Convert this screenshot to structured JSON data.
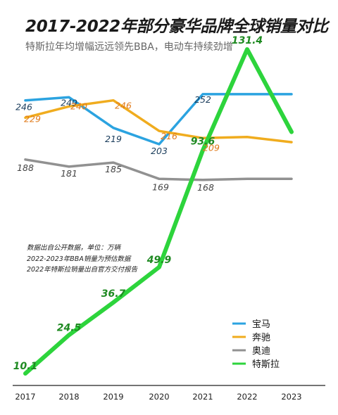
{
  "header": {
    "title": "2017-2022年部分豪华品牌全球销量对比",
    "subtitle": "特斯拉年均增幅远远领先BBA，电动车持续劲增"
  },
  "notes": [
    "数据出自公开数据，单位：万辆",
    "2022-2023年BBA销量为预估数据",
    "2022年特斯拉销量出自官方交付报告"
  ],
  "chart_data": {
    "type": "line",
    "title": "2017-2022年部分豪华品牌全球销量对比",
    "subtitle": "特斯拉年均增幅远远领先BBA，电动车持续劲增",
    "x": [
      "2017",
      "2018",
      "2019",
      "2020",
      "2021",
      "2022",
      "2023"
    ],
    "legend_position": "bottom-right",
    "grid": false,
    "series": [
      {
        "name": "宝马",
        "color": "#2ba3e0",
        "values": [
          246,
          249,
          219,
          203,
          252,
          252,
          252
        ],
        "labels": [
          "246",
          "249",
          "219",
          "203",
          "252",
          null,
          null
        ]
      },
      {
        "name": "奔驰",
        "color": "#f0ac1e",
        "values": [
          229,
          240,
          246,
          216,
          209,
          210,
          205
        ],
        "labels": [
          "229",
          "240",
          "246",
          "216",
          "209",
          null,
          null
        ]
      },
      {
        "name": "奥迪",
        "color": "#919191",
        "values": [
          188,
          181,
          185,
          169,
          168,
          169,
          169
        ],
        "labels": [
          "188",
          "181",
          "185",
          "169",
          "168",
          null,
          null
        ]
      },
      {
        "name": "特斯拉",
        "color": "#2dd43c",
        "values": [
          10.1,
          24.5,
          36.7,
          49.9,
          93.6,
          131.4,
          215
        ],
        "labels": [
          "10.1",
          "24.5",
          "36.7",
          "49.9",
          "93.6",
          "131.4",
          null
        ]
      }
    ]
  }
}
